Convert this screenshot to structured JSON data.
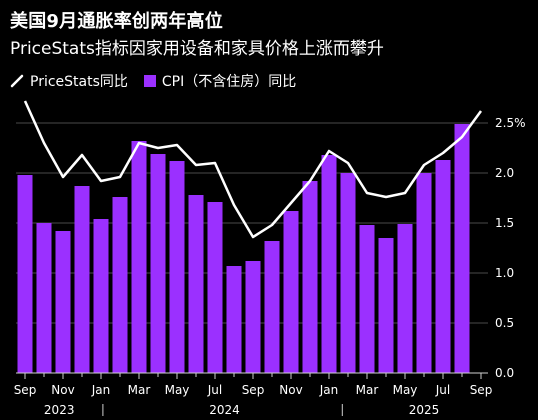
{
  "header": {
    "title": "美国9月通胀率创两年高位",
    "subtitle": "PriceStats指标因家用设备和家具价格上涨而攀升"
  },
  "colors": {
    "background": "#000000",
    "bar": "#9b30ff",
    "line": "#ffffff",
    "grid": "#4a4a4a"
  },
  "chart_data": {
    "type": "bar",
    "y_unit": "%",
    "ylim": [
      0,
      2.7
    ],
    "y_ticks": [
      0.0,
      0.5,
      1.0,
      1.5,
      2.0,
      2.5
    ],
    "y_tick_labels": [
      "0.0",
      "0.5",
      "1.0",
      "1.5",
      "2.0",
      "2.5%"
    ],
    "grid": true,
    "legend_position": "top-left",
    "categories": [
      "2023-09",
      "2023-10",
      "2023-11",
      "2023-12",
      "2024-01",
      "2024-02",
      "2024-03",
      "2024-04",
      "2024-05",
      "2024-06",
      "2024-07",
      "2024-08",
      "2024-09",
      "2024-10",
      "2024-11",
      "2024-12",
      "2025-01",
      "2025-02",
      "2025-03",
      "2025-04",
      "2025-05",
      "2025-06",
      "2025-07",
      "2025-08",
      "2025-09"
    ],
    "x_tick_labels": [
      "Sep",
      "Nov",
      "Jan",
      "Mar",
      "May",
      "Jul",
      "Sep",
      "Nov",
      "Jan",
      "Mar",
      "May",
      "Jul",
      "Sep"
    ],
    "year_labels": [
      "2023",
      "2024",
      "2025"
    ],
    "series": [
      {
        "name": "CPI（不含住房）同比",
        "kind": "bar",
        "values": [
          1.98,
          1.5,
          1.42,
          1.87,
          1.54,
          1.76,
          2.32,
          2.19,
          2.12,
          1.78,
          1.71,
          1.07,
          1.12,
          1.32,
          1.62,
          1.92,
          2.18,
          2.0,
          1.48,
          1.35,
          1.49,
          2.0,
          2.13,
          2.49,
          null
        ]
      },
      {
        "name": "PriceStats同比",
        "kind": "line",
        "values": [
          2.72,
          2.3,
          1.96,
          2.18,
          1.92,
          1.96,
          2.3,
          2.25,
          2.28,
          2.08,
          2.1,
          1.68,
          1.36,
          1.48,
          1.7,
          1.92,
          2.22,
          2.1,
          1.8,
          1.76,
          1.8,
          2.08,
          2.2,
          2.36,
          2.62
        ]
      }
    ]
  }
}
